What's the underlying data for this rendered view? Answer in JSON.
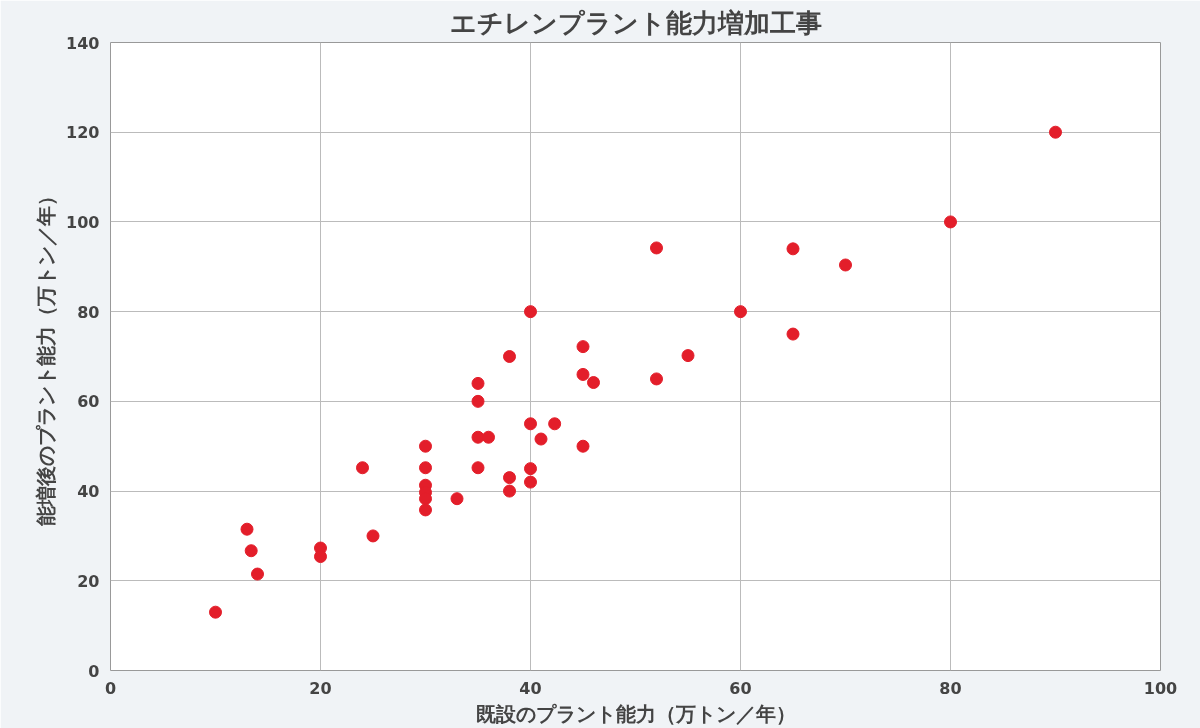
{
  "chart_data": {
    "type": "scatter",
    "title": "エチレンプラント能力増加工事",
    "xlabel": "既設のプラント能力（万トン／年）",
    "ylabel": "能増後のプラント能力（万トン／年）",
    "x": [
      10,
      13,
      13.4,
      14,
      20,
      20,
      24,
      25,
      30,
      30,
      30,
      30,
      30,
      30,
      33,
      35,
      35,
      35,
      35,
      36,
      38,
      38,
      38,
      40,
      40,
      40,
      40,
      41,
      42.3,
      45,
      45,
      45,
      46,
      52,
      52,
      55,
      60,
      65,
      65,
      70,
      80,
      90
    ],
    "values": [
      13,
      31.5,
      26.7,
      21.5,
      27.3,
      25.4,
      45.2,
      30,
      50,
      45.2,
      41.3,
      39.7,
      38.3,
      35.8,
      38.3,
      64,
      60,
      52,
      45.2,
      52,
      70,
      43,
      40,
      80,
      55,
      45,
      42,
      51.6,
      55,
      72.2,
      66,
      50,
      64.2,
      94.2,
      65,
      70.2,
      80,
      94,
      75,
      90.4,
      100,
      120
    ],
    "color": "#e31e2a",
    "marker": "circle",
    "xlim": [
      0,
      100
    ],
    "ylim": [
      0,
      140
    ],
    "xticks": [
      0,
      20,
      40,
      60,
      80,
      100
    ],
    "yticks": [
      0,
      20,
      40,
      60,
      80,
      100,
      120,
      140
    ],
    "grid": true
  }
}
